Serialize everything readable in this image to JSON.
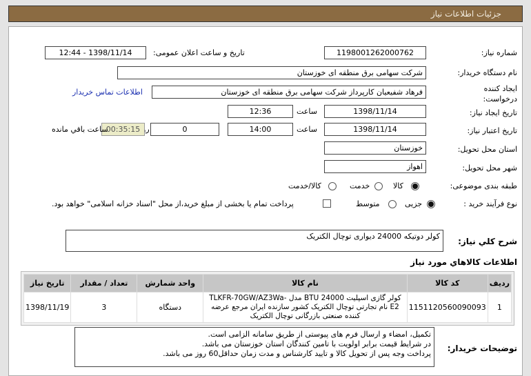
{
  "header": {
    "title": "جزئیات اطلاعات نیاز"
  },
  "form": {
    "need_number_label": "شماره نیاز:",
    "need_number": "1198001262000762",
    "announce_label": "تاریخ و ساعت اعلان عمومی:",
    "announce_value": "1398/11/14 - 12:44",
    "buyer_label": "نام دستگاه خریدار:",
    "buyer_value": "شرکت سهامی برق منطقه ای خوزستان",
    "creator_label_1": "ایجاد کننده",
    "creator_label_2": "درخواست:",
    "creator_value": "فرهاد شفیعیان کارپرداز شرکت سهامی برق منطقه ای خوزستان",
    "contact_link": "اطلاعات تماس خریدار",
    "created_label": "تاریخ ایجاد نیاز:",
    "created_date": "1398/11/14",
    "time_label": "ساعت",
    "created_time": "12:36",
    "valid_label": "تاریخ اعتبار نیاز:",
    "valid_date": "1398/11/14",
    "valid_time": "14:00",
    "days": "0",
    "days_label": "روز و",
    "remaining": "00:35:15",
    "remaining_label": "ساعت باقي مانده",
    "province_label": "استان محل تحویل:",
    "province": "خوزستان",
    "city_label": "شهر محل تحویل:",
    "city": "اهواز",
    "category_label": "طبقه بندی موضوعی:",
    "category_options": [
      "کالا",
      "خدمت",
      "کالا/خدمت"
    ],
    "category_selected": "کالا",
    "process_label": "نوع فرآیند خرید :",
    "process_options": [
      "جزیی",
      "متوسط"
    ],
    "process_selected": "جزیی",
    "payment_note": "پرداخت تمام یا بخشی از مبلغ خرید،از محل \"اسناد خزانه اسلامی\" خواهد بود."
  },
  "description": {
    "label": "شرح كلي نياز:",
    "value": "کولر دوتیکه 24000 دیواری توچال الکتریک"
  },
  "goods": {
    "heading": "اطلاعات كالاهاي مورد نياز",
    "columns": [
      "ردیف",
      "کد کالا",
      "نام کالا",
      "واحد شمارش",
      "تعداد / مقدار",
      "تاریخ نیاز"
    ],
    "rows": [
      {
        "row": "1",
        "code": "1151120560090093",
        "name": "کولر گازی اسپلیت BTU 24000 مدل TLKFR-70GW/AZ3Wa-E2 نام تجارتی توچال الکتریک کشور سازنده ایران مرجع عرضه کننده صنعتی بازرگانی توچال الکتریک",
        "unit": "دستگاه",
        "qty": "3",
        "date": "1398/11/19"
      }
    ]
  },
  "notes": {
    "label": "توضیحات خریدار:",
    "lines": [
      "تکمیل، امضاء و ارسال فرم های پیوستی از طریق سامانه الزامی است.",
      "در شرایط  قیمت برابر اولویت با تامین کنندگان استان خوزستان می باشد.",
      "پرداخت وجه پس از تحویل کالا و تایید کارشناس و مدت زمان حداقل60 روز می باشد."
    ]
  },
  "colors": {
    "header_bg": "#8b6b42",
    "remaining_bg": "#ececc8",
    "link": "#1a2fb0",
    "table_header": "#c6c6c6"
  }
}
